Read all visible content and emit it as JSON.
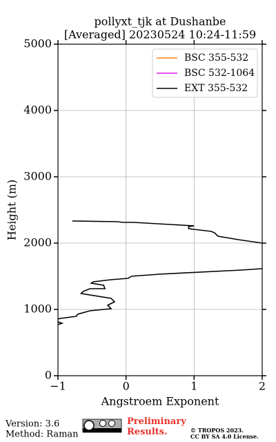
{
  "chart_data": {
    "type": "line",
    "title_lines": [
      "pollyxt_tjk at Dushanbe",
      "[Averaged] 20230524 10:24-11:59"
    ],
    "xlabel": "Angstroem Exponent",
    "ylabel": "Height (m)",
    "xlim": [
      -1,
      2
    ],
    "ylim": [
      0,
      5000
    ],
    "xticks": [
      {
        "value": -1,
        "label": "−1"
      },
      0,
      1,
      2
    ],
    "yticks": [
      0,
      1000,
      2000,
      3000,
      4000,
      5000
    ],
    "grid": true,
    "legend": "upper right",
    "series": [
      {
        "name": "BSC 355-532",
        "color": "#ff7f0e",
        "y": [],
        "values": []
      },
      {
        "name": "BSC 532-1064",
        "color": "#e01ce0",
        "y": [],
        "values": []
      },
      {
        "name": "EXT 355-532",
        "color": "#000000",
        "y": [
          2333,
          2323,
          2313,
          2313,
          2260,
          2250,
          2219,
          2208,
          2177,
          2156,
          2104,
          2052,
          2000,
          null,
          1615,
          1594,
          1531,
          1500,
          1469,
          1448,
          1417,
          1396,
          1365,
          1313,
          1313,
          1271,
          1240,
          1167,
          1115,
          1063,
          1010,
          979,
          927,
          896,
          865,
          854,
          null,
          812,
          792,
          771
        ],
        "values": [
          -0.79,
          -0.12,
          -0.05,
          0.11,
          1.0,
          0.92,
          0.92,
          0.99,
          1.25,
          1.3,
          1.35,
          1.65,
          2.0,
          null,
          2.0,
          1.7,
          0.49,
          0.08,
          0.03,
          -0.22,
          -0.48,
          -0.51,
          -0.33,
          -0.31,
          -0.53,
          -0.63,
          -0.66,
          -0.22,
          -0.17,
          -0.27,
          -0.22,
          -0.53,
          -0.71,
          -0.73,
          -0.96,
          -1.0,
          null,
          -1.0,
          -0.94,
          -1.0
        ]
      }
    ]
  },
  "footer": {
    "version": "Version: 3.6",
    "method": "Method: Raman",
    "status": "Preliminary Results.",
    "copyright": "© TROPOS 2023.",
    "license": "CC BY SA 4.0 License."
  }
}
